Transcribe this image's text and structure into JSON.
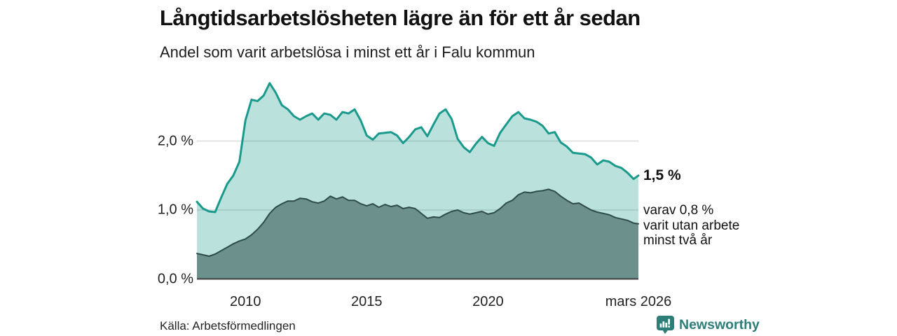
{
  "header": {
    "title": "Långtidsarbetslösheten lägre än för ett år sedan",
    "subtitle": "Andel som varit arbetslösa i minst ett år i Falu kommun"
  },
  "annotations": {
    "end_value_label": "1,5 %",
    "secondary_label_lines": [
      "varav 0,8 %",
      "varit utan arbete",
      "minst två år"
    ]
  },
  "footer": {
    "source": "Källa: Arbetsförmedlingen",
    "brand": "Newsworthy"
  },
  "colors": {
    "accent_teal": "#1a9a8c",
    "light_area_fill": "rgba(26,154,140,0.30)",
    "dark_area_fill": "#6c918c",
    "dark_line": "#2f4c48",
    "gridline": "#d9d9d9",
    "axis_line": "#3f3f3f",
    "brand_teal": "#2d7d78",
    "text": "#111111"
  },
  "chart_data": {
    "type": "area",
    "title": "Långtidsarbetslösheten lägre än för ett år sedan",
    "subtitle": "Andel som varit arbetslösa i minst ett år i Falu kommun",
    "unit": "%",
    "x_axis": {
      "range": [
        2008,
        2026.2
      ],
      "ticks": [
        {
          "x": 2010,
          "label": "2010"
        },
        {
          "x": 2015,
          "label": "2015"
        },
        {
          "x": 2020,
          "label": "2020"
        },
        {
          "x": 2026.2,
          "label": "mars 2026"
        }
      ]
    },
    "y_axis": {
      "range": [
        0,
        2.95
      ],
      "ticks": [
        {
          "value": 0,
          "label": "0,0 %"
        },
        {
          "value": 1,
          "label": "1,0 %"
        },
        {
          "value": 2,
          "label": "2,0 %"
        }
      ]
    },
    "x": [
      2008,
      2008.25,
      2008.5,
      2008.75,
      2009,
      2009.25,
      2009.5,
      2009.75,
      2010,
      2010.25,
      2010.5,
      2010.75,
      2011,
      2011.25,
      2011.5,
      2011.75,
      2012,
      2012.25,
      2012.5,
      2012.75,
      2013,
      2013.25,
      2013.5,
      2013.75,
      2014,
      2014.25,
      2014.5,
      2014.75,
      2015,
      2015.25,
      2015.5,
      2015.75,
      2016,
      2016.25,
      2016.5,
      2016.75,
      2017,
      2017.25,
      2017.5,
      2017.75,
      2018,
      2018.25,
      2018.5,
      2018.75,
      2019,
      2019.25,
      2019.5,
      2019.75,
      2020,
      2020.25,
      2020.5,
      2020.75,
      2021,
      2021.25,
      2021.5,
      2021.75,
      2022,
      2022.25,
      2022.5,
      2022.75,
      2023,
      2023.25,
      2023.5,
      2023.75,
      2024,
      2024.25,
      2024.5,
      2024.75,
      2025,
      2025.25,
      2025.5,
      2025.75,
      2026,
      2026.2
    ],
    "series": [
      {
        "name": "Arbetslösa minst ett år",
        "end_value": 1.5,
        "end_label": "1,5 %",
        "values": [
          1.12,
          1.02,
          0.98,
          0.97,
          1.18,
          1.38,
          1.5,
          1.7,
          2.3,
          2.6,
          2.58,
          2.66,
          2.84,
          2.7,
          2.52,
          2.46,
          2.36,
          2.31,
          2.36,
          2.4,
          2.31,
          2.4,
          2.38,
          2.31,
          2.42,
          2.4,
          2.46,
          2.3,
          2.08,
          2.02,
          2.11,
          2.12,
          2.13,
          2.08,
          1.97,
          2.06,
          2.17,
          2.2,
          2.07,
          2.24,
          2.4,
          2.46,
          2.32,
          2.03,
          1.91,
          1.84,
          1.96,
          2.06,
          1.97,
          1.93,
          2.12,
          2.24,
          2.36,
          2.42,
          2.33,
          2.31,
          2.28,
          2.22,
          2.11,
          2.13,
          1.98,
          1.92,
          1.83,
          1.82,
          1.81,
          1.76,
          1.66,
          1.72,
          1.7,
          1.64,
          1.61,
          1.54,
          1.45,
          1.5
        ]
      },
      {
        "name": "varav utan arbete minst två år",
        "end_value": 0.8,
        "end_label": "varav 0,8 % varit utan arbete minst två år",
        "values": [
          0.37,
          0.35,
          0.33,
          0.36,
          0.41,
          0.46,
          0.51,
          0.55,
          0.58,
          0.64,
          0.72,
          0.82,
          0.95,
          1.04,
          1.09,
          1.13,
          1.13,
          1.17,
          1.16,
          1.12,
          1.1,
          1.13,
          1.2,
          1.16,
          1.19,
          1.14,
          1.14,
          1.09,
          1.06,
          1.09,
          1.04,
          1.08,
          1.05,
          1.07,
          1.02,
          1.04,
          1.02,
          0.95,
          0.88,
          0.9,
          0.89,
          0.94,
          0.98,
          1.0,
          0.96,
          0.94,
          0.96,
          0.98,
          0.94,
          0.96,
          1.02,
          1.1,
          1.14,
          1.22,
          1.26,
          1.25,
          1.27,
          1.28,
          1.3,
          1.27,
          1.2,
          1.14,
          1.09,
          1.1,
          1.05,
          1.0,
          0.97,
          0.95,
          0.93,
          0.89,
          0.87,
          0.85,
          0.81,
          0.8
        ]
      }
    ],
    "legend": "none",
    "grid": "horizontal"
  }
}
